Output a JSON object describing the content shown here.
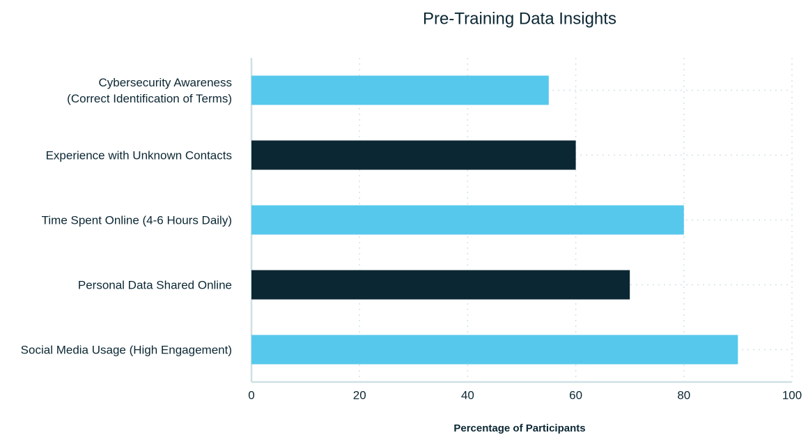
{
  "chart_data": {
    "type": "barh",
    "title": "Pre-Training Data Insights",
    "xlabel": "Percentage of Participants",
    "categories": [
      "Cybersecurity Awareness\n(Correct Identification of Terms)",
      "Experience with Unknown Contacts",
      "Time Spent Online (4-6 Hours Daily)",
      "Personal Data Shared Online",
      "Social Media Usage (High Engagement)"
    ],
    "values": [
      55,
      60,
      80,
      70,
      90
    ],
    "colors": [
      "#56c8ec",
      "#0b2733",
      "#56c8ec",
      "#0b2733",
      "#56c8ec"
    ],
    "xlim": [
      0,
      100
    ],
    "xticks": [
      0,
      20,
      40,
      60,
      80,
      100
    ],
    "grid": true
  }
}
